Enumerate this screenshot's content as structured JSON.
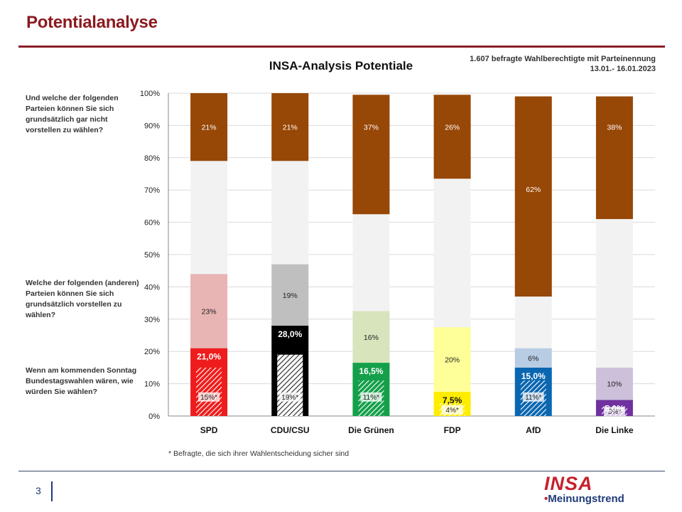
{
  "header": {
    "title": "Potentialanalyse"
  },
  "sample": {
    "line1": "1.607 befragte Wahlberechtigte mit Parteinennung",
    "line2": "13.01.- 16.01.2023"
  },
  "questions": {
    "q1": "Und welche der folgenden Parteien können Sie sich grundsätzlich gar nicht vorstellen zu wählen?",
    "q2": "Welche der folgenden (anderen) Parteien können Sie sich grundsätzlich vorstellen zu wählen?",
    "q3": "Wenn am kommenden Sonntag Bundestagswahlen wären, wie würden Sie wählen?"
  },
  "footnote": "* Befragte, die sich ihrer Wahlentscheidung sicher sind",
  "footer": {
    "page_number": "3",
    "logo_top": "INSA",
    "logo_dot": "•",
    "logo_bottom": "Meinungstrend"
  },
  "chart_data": {
    "type": "bar",
    "stacked": true,
    "title": "INSA-Analysis Potentiale",
    "categories": [
      "SPD",
      "CDU/CSU",
      "Die Grünen",
      "FDP",
      "AfD",
      "Die Linke"
    ],
    "ylim": [
      0,
      100
    ],
    "yticks": [
      "0%",
      "10%",
      "20%",
      "30%",
      "40%",
      "50%",
      "60%",
      "70%",
      "80%",
      "90%",
      "100%"
    ],
    "series": [
      {
        "values": [
          21.0,
          28.0,
          16.5,
          7.5,
          15.0,
          5.0
        ],
        "labels": [
          "21,0%",
          "28,0%",
          "16,5%",
          "7,5%",
          "15,0%",
          "5,0%"
        ]
      },
      {
        "values": [
          23,
          19,
          16,
          20,
          6,
          10
        ],
        "labels": [
          "23%",
          "19%",
          "16%",
          "20%",
          "6%",
          "10%"
        ]
      },
      {
        "values": [
          35,
          32,
          30,
          46,
          16,
          46
        ],
        "labels": [
          "",
          "",
          "",
          "",
          "",
          ""
        ]
      },
      {
        "values": [
          21,
          21,
          37,
          26,
          62,
          38
        ],
        "labels": [
          "21%",
          "21%",
          "37%",
          "26%",
          "62%",
          "38%"
        ]
      }
    ],
    "certain_voters": {
      "values": [
        15,
        19,
        11,
        4,
        11,
        3
      ],
      "labels": [
        "15%",
        "19%",
        "11%",
        "4%",
        "11%",
        "3%"
      ],
      "marker": "*"
    },
    "colors": {
      "vote": [
        "#ee1c1c",
        "#000000",
        "#14a04a",
        "#ffed00",
        "#0a66b0",
        "#7030a0"
      ],
      "potential": [
        "#e8b4b4",
        "#bfbfbf",
        "#d8e4bc",
        "#ffff99",
        "#b8cce4",
        "#ccc0da"
      ],
      "neutral": "#f2f2f2",
      "rejection": "#974706"
    }
  }
}
